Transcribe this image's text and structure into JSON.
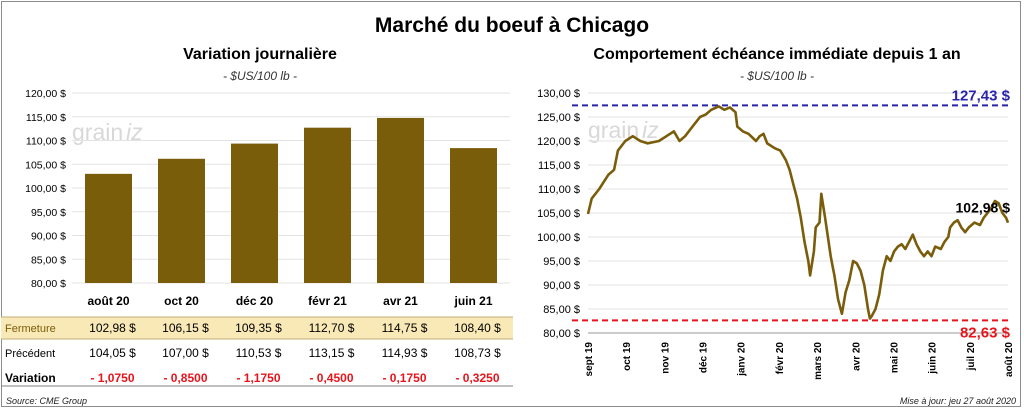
{
  "title": "Marché du boeuf à Chicago",
  "source": "Source: CME Group",
  "updated": "Mise à jour: jeu 27 août 2020",
  "watermark": {
    "text_left": "grain",
    "text_right": "iz"
  },
  "chart_data": [
    {
      "type": "bar",
      "title": "Variation journalière",
      "unit": "- $US/100 lb -",
      "categories": [
        "août 20",
        "oct 20",
        "déc 20",
        "févr 21",
        "avr 21",
        "juin 21"
      ],
      "values": [
        102.98,
        106.15,
        109.35,
        112.7,
        114.75,
        108.4
      ],
      "ylim": [
        80,
        120
      ],
      "yticks": [
        "80,00 $",
        "85,00 $",
        "90,00 $",
        "95,00 $",
        "100,00 $",
        "105,00 $",
        "110,00 $",
        "115,00 $",
        "120,00 $"
      ],
      "bar_color": "#7a5d0a",
      "grid": true,
      "table": {
        "rows": [
          {
            "label": "Fermeture",
            "cells": [
              "102,98  $",
              "106,15  $",
              "109,35  $",
              "112,70  $",
              "114,75  $",
              "108,40  $"
            ]
          },
          {
            "label": "Précédent",
            "cells": [
              "104,05  $",
              "107,00  $",
              "110,53  $",
              "113,15  $",
              "114,93  $",
              "108,73  $"
            ]
          },
          {
            "label": "Variation",
            "cells": [
              "- 1,0750",
              "- 0,8500",
              "- 1,1750",
              "- 0,4500",
              "- 0,1750",
              "- 0,3250"
            ]
          }
        ]
      }
    },
    {
      "type": "line",
      "title": "Comportement  échéance immédiate depuis 1 an",
      "unit": "- $US/100 lb -",
      "ylim": [
        80,
        130
      ],
      "yticks": [
        "80,00 $",
        "85,00 $",
        "90,00 $",
        "95,00 $",
        "100,00 $",
        "105,00 $",
        "110,00 $",
        "115,00 $",
        "120,00 $",
        "125,00 $",
        "130,00 $"
      ],
      "xticks": [
        "sept 19",
        "oct 19",
        "nov 19",
        "déc 19",
        "janv 20",
        "févr 20",
        "mars 20",
        "avr 20",
        "mai 20",
        "juin 20",
        "juil 20",
        "août 20"
      ],
      "series": [
        {
          "line_color": "#7a5d0a",
          "points": [
            [
              0,
              104.8
            ],
            [
              0.1,
              108
            ],
            [
              0.3,
              110
            ],
            [
              0.55,
              113
            ],
            [
              0.7,
              114
            ],
            [
              0.8,
              118
            ],
            [
              1.0,
              120
            ],
            [
              1.2,
              121
            ],
            [
              1.4,
              120
            ],
            [
              1.6,
              119.5
            ],
            [
              1.9,
              120
            ],
            [
              2.1,
              121
            ],
            [
              2.3,
              122
            ],
            [
              2.45,
              120
            ],
            [
              2.6,
              121
            ],
            [
              2.8,
              123
            ],
            [
              3.0,
              125
            ],
            [
              3.15,
              125.5
            ],
            [
              3.3,
              126.5
            ],
            [
              3.5,
              127.2
            ],
            [
              3.65,
              126.5
            ],
            [
              3.8,
              127
            ],
            [
              3.95,
              126
            ],
            [
              4.0,
              123
            ],
            [
              4.15,
              122
            ],
            [
              4.3,
              121.5
            ],
            [
              4.5,
              120
            ],
            [
              4.6,
              121
            ],
            [
              4.7,
              121.5
            ],
            [
              4.8,
              119.5
            ],
            [
              5.0,
              118.5
            ],
            [
              5.15,
              118
            ],
            [
              5.3,
              116
            ],
            [
              5.4,
              114
            ],
            [
              5.5,
              111
            ],
            [
              5.6,
              108
            ],
            [
              5.7,
              104
            ],
            [
              5.8,
              99
            ],
            [
              5.9,
              95
            ],
            [
              5.95,
              92
            ],
            [
              6.05,
              97
            ],
            [
              6.1,
              102
            ],
            [
              6.2,
              103
            ],
            [
              6.25,
              109
            ],
            [
              6.35,
              104
            ],
            [
              6.5,
              96
            ],
            [
              6.55,
              94
            ],
            [
              6.6,
              92
            ],
            [
              6.7,
              87
            ],
            [
              6.8,
              84
            ],
            [
              6.9,
              88.5
            ],
            [
              7.0,
              91
            ],
            [
              7.1,
              95
            ],
            [
              7.2,
              94.5
            ],
            [
              7.3,
              93
            ],
            [
              7.4,
              90
            ],
            [
              7.5,
              85
            ],
            [
              7.55,
              83
            ],
            [
              7.6,
              83.5
            ],
            [
              7.7,
              85
            ],
            [
              7.8,
              88
            ],
            [
              7.9,
              93
            ],
            [
              8.0,
              96
            ],
            [
              8.1,
              95
            ],
            [
              8.2,
              97
            ],
            [
              8.3,
              98
            ],
            [
              8.4,
              98.5
            ],
            [
              8.5,
              97.5
            ],
            [
              8.6,
              99
            ],
            [
              8.7,
              100.5
            ],
            [
              8.8,
              98.5
            ],
            [
              8.9,
              97
            ],
            [
              9.0,
              96
            ],
            [
              9.1,
              97
            ],
            [
              9.2,
              96
            ],
            [
              9.3,
              98
            ],
            [
              9.45,
              97.5
            ],
            [
              9.55,
              99
            ],
            [
              9.65,
              100
            ],
            [
              9.7,
              102
            ],
            [
              9.8,
              103
            ],
            [
              9.9,
              103.5
            ],
            [
              10.0,
              102
            ],
            [
              10.1,
              101
            ],
            [
              10.2,
              102
            ],
            [
              10.35,
              103
            ],
            [
              10.5,
              102.5
            ],
            [
              10.6,
              104
            ],
            [
              10.7,
              105
            ],
            [
              10.8,
              106
            ],
            [
              10.9,
              107.5
            ],
            [
              11.0,
              107
            ],
            [
              11.1,
              105
            ],
            [
              11.2,
              104
            ],
            [
              11.25,
              102.98
            ]
          ]
        }
      ],
      "reference_lines": [
        {
          "value": 127.43,
          "label": "127,43 $",
          "color": "#2a25a8"
        },
        {
          "value": 82.63,
          "label": "82,63 $",
          "color": "#e8141b"
        }
      ],
      "last_label": "102,98 $",
      "grid": true
    }
  ]
}
